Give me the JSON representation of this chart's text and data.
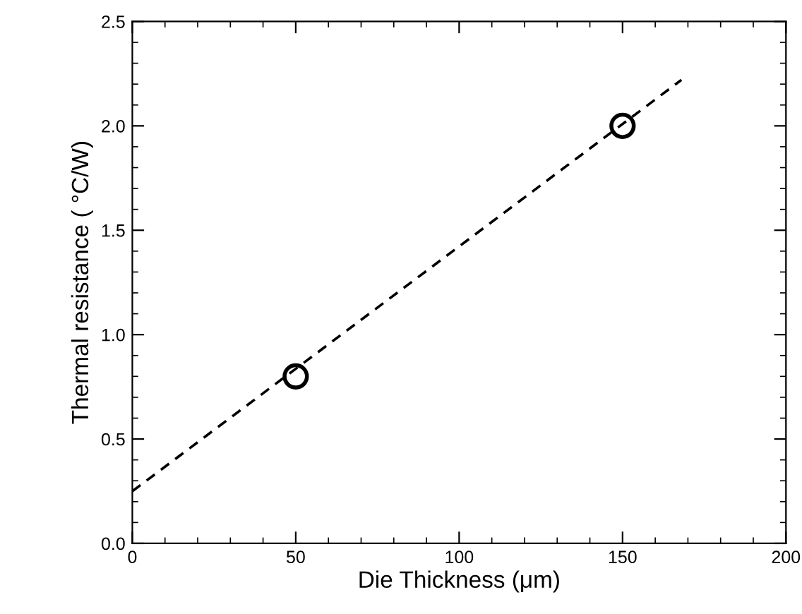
{
  "chart_data": {
    "type": "scatter",
    "xlabel": "Die Thickness (μm)",
    "ylabel": "Thermal resistance ( °C/W)",
    "xlim": [
      0,
      200
    ],
    "ylim": [
      0,
      2.5
    ],
    "xticks": [
      0,
      50,
      100,
      150,
      200
    ],
    "yticks": [
      {
        "value": 0,
        "label": "0.0"
      },
      {
        "value": 0.5,
        "label": "0.5"
      },
      {
        "value": 1.0,
        "label": "1.0"
      },
      {
        "value": 1.5,
        "label": "1.5"
      },
      {
        "value": 2.0,
        "label": "2.0"
      },
      {
        "value": 2.5,
        "label": "2.5"
      }
    ],
    "grid": false,
    "legend": false,
    "series": [
      {
        "color": "#000000",
        "marker": "circle",
        "x": [
          50,
          150
        ],
        "values": [
          0.8,
          2.0
        ]
      },
      {
        "type": "line",
        "color": "#000000",
        "line_style": "dashed",
        "marker": "none",
        "x": [
          0,
          168
        ],
        "values": [
          0.25,
          2.22
        ]
      }
    ]
  }
}
